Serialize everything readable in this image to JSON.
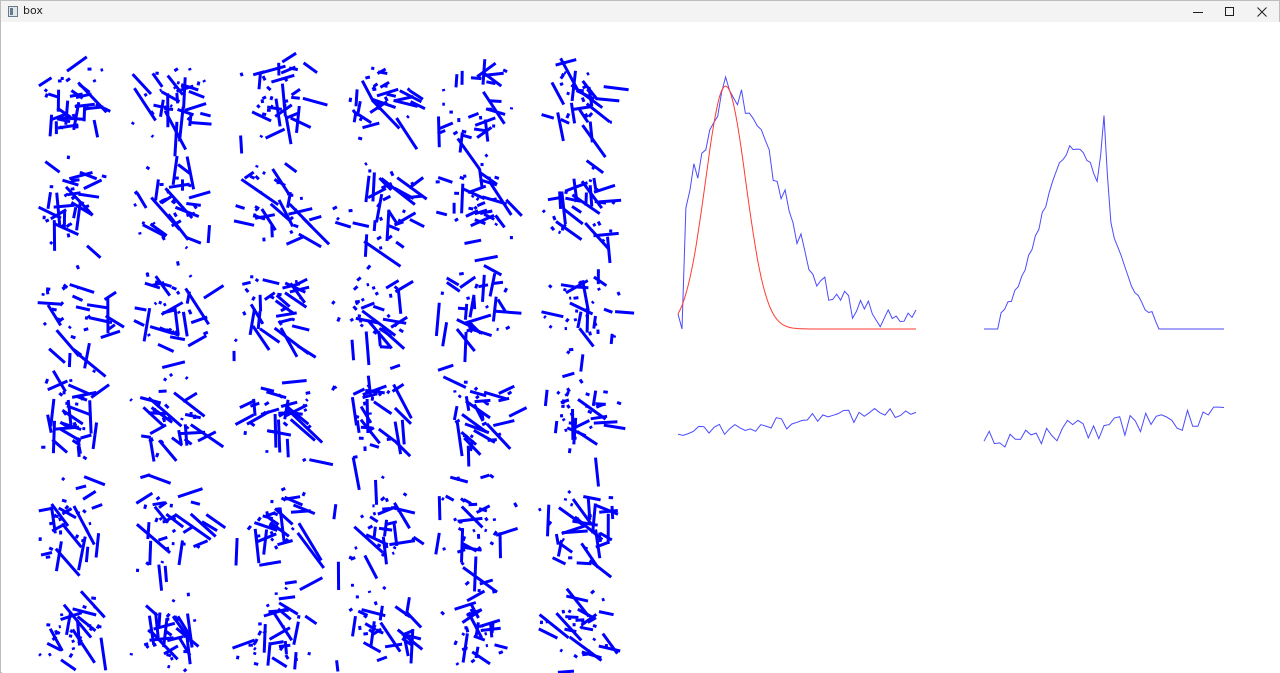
{
  "window": {
    "title": "box",
    "app_icon": "window-app-icon",
    "controls": [
      "minimize-icon",
      "maximize-icon",
      "close-icon"
    ]
  },
  "colors": {
    "stroke": "#0000ff",
    "fit": "#ff3b30",
    "profile": "#4b4bff",
    "titlebar": "#f3f3f3"
  },
  "panels": [
    "line-segment-field",
    "histogram-with-fit",
    "histogram-peaked",
    "residual-left",
    "residual-right"
  ]
}
